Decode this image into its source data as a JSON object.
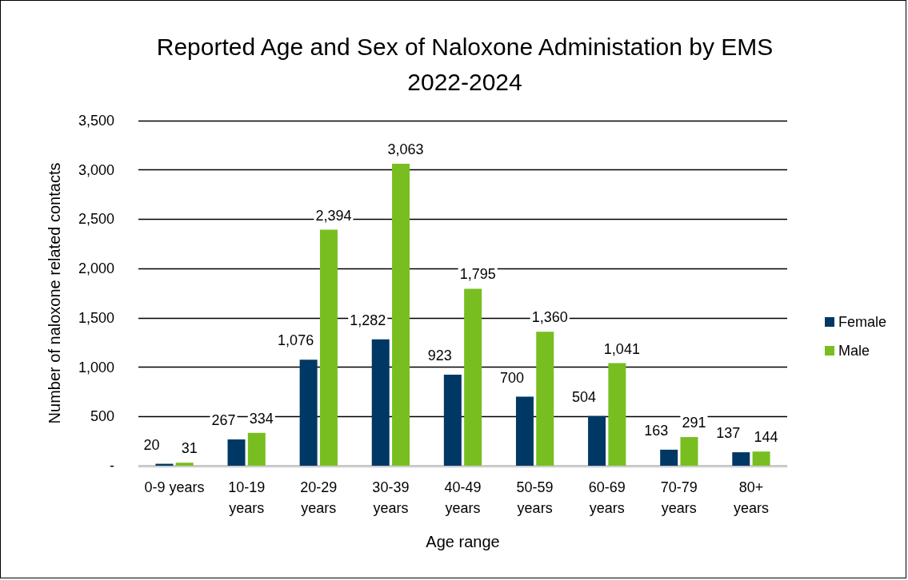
{
  "chart_data": {
    "type": "bar",
    "title": "Reported Age and Sex of Naloxone Administation by EMS\n2022-2024",
    "xlabel": "Age range",
    "ylabel": "Number of naloxone related contacts",
    "categories": [
      "0-9 years",
      "10-19\nyears",
      "20-29\nyears",
      "30-39\nyears",
      "40-49\nyears",
      "50-59\nyears",
      "60-69\nyears",
      "70-79\nyears",
      "80+\nyears"
    ],
    "series": [
      {
        "name": "Female",
        "color": "#003865",
        "values": [
          20,
          267,
          1076,
          1282,
          923,
          700,
          504,
          163,
          137
        ],
        "value_labels": [
          "20",
          "267",
          "1,076",
          "1,282",
          "923",
          "700",
          "504",
          "163",
          "137"
        ]
      },
      {
        "name": "Male",
        "color": "#78be20",
        "values": [
          31,
          334,
          2394,
          3063,
          1795,
          1360,
          1041,
          291,
          144
        ],
        "value_labels": [
          "31",
          "334",
          "2,394",
          "3,063",
          "1,795",
          "1,360",
          "1,041",
          "291",
          "144"
        ]
      }
    ],
    "ylim": [
      0,
      3500
    ],
    "yticks": [
      {
        "value": 0,
        "label": "-"
      },
      {
        "value": 500,
        "label": "500"
      },
      {
        "value": 1000,
        "label": "1,000"
      },
      {
        "value": 1500,
        "label": "1,500"
      },
      {
        "value": 2000,
        "label": "2,000"
      },
      {
        "value": 2500,
        "label": "2,500"
      },
      {
        "value": 3000,
        "label": "3,000"
      },
      {
        "value": 3500,
        "label": "3,500"
      }
    ],
    "grid": "y",
    "legend": "right"
  }
}
